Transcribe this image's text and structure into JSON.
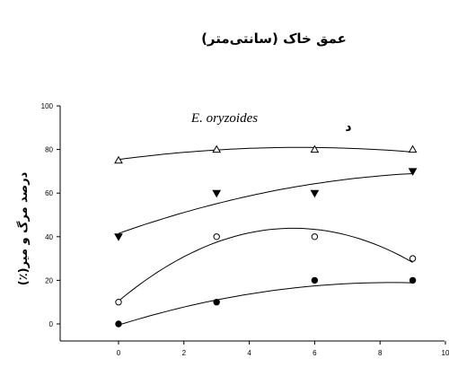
{
  "chart_data": {
    "type": "scatter",
    "title": "عمق خاک (سانتی‌متر)",
    "ylabel": "درصد مرگ و میر(٪)",
    "annotation_species": "E. oryzoides",
    "annotation_panel": "د",
    "xlim": [
      0,
      10
    ],
    "ylim": [
      0,
      100
    ],
    "x_ticks": [
      "0",
      "2",
      "4",
      "6",
      "8",
      "10"
    ],
    "y_ticks": [
      "0",
      "20",
      "40",
      "60",
      "80",
      "100"
    ],
    "series": [
      {
        "marker": "open-triangle",
        "x": [
          0,
          3,
          6,
          9
        ],
        "y": [
          75,
          80,
          80,
          80
        ],
        "fit": [
          75.4,
          2.0,
          -0.18
        ]
      },
      {
        "marker": "filled-down-triangle",
        "x": [
          0,
          3,
          6,
          9
        ],
        "y": [
          40,
          60,
          60,
          70
        ],
        "fit": [
          41.5,
          5.3,
          -0.25
        ]
      },
      {
        "marker": "open-circle",
        "x": [
          0,
          3,
          6,
          9
        ],
        "y": [
          10,
          40,
          40,
          30
        ],
        "fit": [
          10.5,
          12.5,
          -1.17
        ]
      },
      {
        "marker": "filled-circle",
        "x": [
          0,
          3,
          6,
          9
        ],
        "y": [
          0,
          10,
          20,
          20
        ],
        "fit": [
          -0.5,
          4.67,
          -0.28
        ]
      }
    ]
  }
}
